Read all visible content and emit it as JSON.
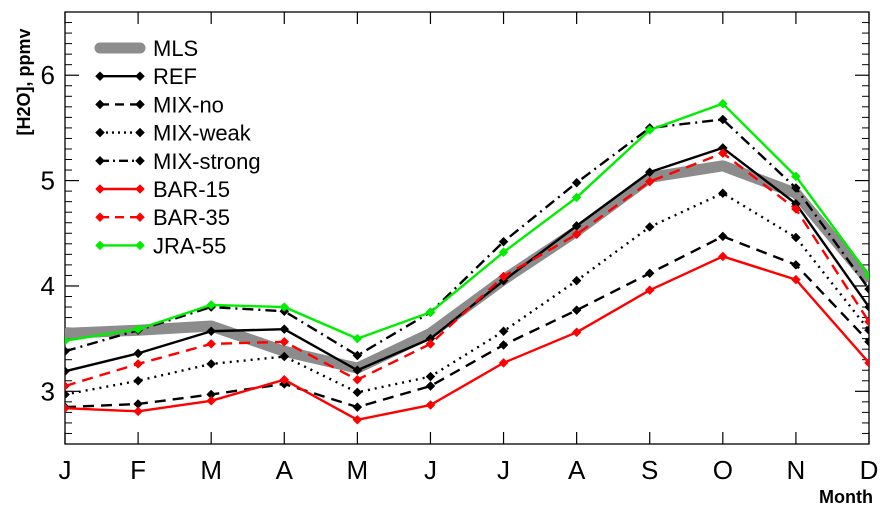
{
  "chart_data": {
    "type": "line",
    "xlabel": "Month",
    "ylabel": "[H2O], ppmv",
    "categories": [
      "J",
      "F",
      "M",
      "A",
      "M",
      "J",
      "J",
      "A",
      "S",
      "O",
      "N",
      "D"
    ],
    "ylim": [
      2.5,
      6.6
    ],
    "yticks": [
      3,
      4,
      5,
      6
    ],
    "ytick_labels": [
      "3",
      "4",
      "5",
      "6"
    ],
    "legend_position": "top-left",
    "grid": false,
    "series": [
      {
        "name": "MLS",
        "color": "#8c8c8c",
        "dash": "solid",
        "marker": "none",
        "thick": true,
        "values": [
          3.55,
          3.58,
          3.62,
          3.38,
          3.22,
          3.55,
          4.06,
          4.52,
          5.03,
          5.14,
          4.88,
          4.05
        ]
      },
      {
        "name": "REF",
        "color": "#000000",
        "dash": "solid",
        "marker": "diamond",
        "values": [
          3.19,
          3.36,
          3.57,
          3.59,
          3.2,
          3.5,
          4.05,
          4.57,
          5.08,
          5.31,
          4.78,
          3.8
        ]
      },
      {
        "name": "MIX-no",
        "color": "#000000",
        "dash": "dash",
        "marker": "diamond",
        "values": [
          2.85,
          2.88,
          2.97,
          3.07,
          2.85,
          3.05,
          3.44,
          3.77,
          4.12,
          4.47,
          4.2,
          3.47
        ]
      },
      {
        "name": "MIX-weak",
        "color": "#000000",
        "dash": "dot",
        "marker": "diamond",
        "values": [
          2.97,
          3.1,
          3.26,
          3.33,
          2.99,
          3.14,
          3.57,
          4.05,
          4.56,
          4.88,
          4.46,
          3.58
        ]
      },
      {
        "name": "MIX-strong",
        "color": "#000000",
        "dash": "dashdot",
        "marker": "diamond",
        "values": [
          3.38,
          3.58,
          3.8,
          3.76,
          3.34,
          3.75,
          4.42,
          4.98,
          5.5,
          5.58,
          4.93,
          3.97
        ]
      },
      {
        "name": "BAR-15",
        "color": "#ff0000",
        "dash": "solid",
        "marker": "diamond",
        "values": [
          2.84,
          2.81,
          2.91,
          3.11,
          2.73,
          2.87,
          3.27,
          3.56,
          3.96,
          4.28,
          4.06,
          3.27
        ]
      },
      {
        "name": "BAR-35",
        "color": "#ff0000",
        "dash": "dash",
        "marker": "diamond",
        "values": [
          3.05,
          3.26,
          3.45,
          3.47,
          3.11,
          3.45,
          4.09,
          4.49,
          4.99,
          5.26,
          4.73,
          3.66
        ]
      },
      {
        "name": "JRA-55",
        "color": "#00ee00",
        "dash": "solid",
        "marker": "diamond",
        "values": [
          3.48,
          3.59,
          3.82,
          3.8,
          3.5,
          3.75,
          4.32,
          4.84,
          5.48,
          5.73,
          5.04,
          4.1
        ]
      }
    ]
  }
}
